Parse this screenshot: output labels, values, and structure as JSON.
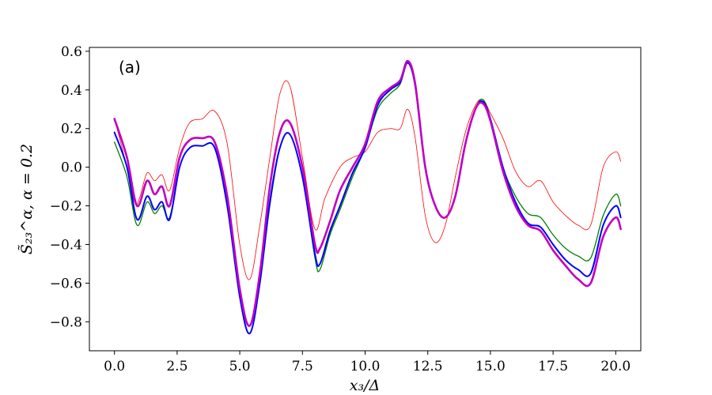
{
  "chart_data": {
    "type": "line",
    "panel_label": "(a)",
    "xlabel": "x₃/Δ",
    "ylabel": "S̃₂₃^α, α = 0.2",
    "xlim": [
      -1.0,
      21.0
    ],
    "ylim": [
      -0.95,
      0.62
    ],
    "x_ticks": [
      0.0,
      2.5,
      5.0,
      7.5,
      10.0,
      12.5,
      15.0,
      17.5,
      20.0
    ],
    "x_tick_labels": [
      "0.0",
      "2.5",
      "5.0",
      "7.5",
      "10.0",
      "12.5",
      "15.0",
      "17.5",
      "20.0"
    ],
    "y_ticks": [
      -0.8,
      -0.6,
      -0.4,
      -0.2,
      0.0,
      0.2,
      0.4,
      0.6
    ],
    "y_tick_labels": [
      "−0.8",
      "−0.6",
      "−0.4",
      "−0.2",
      "0.0",
      "0.2",
      "0.4",
      "0.6"
    ],
    "grid": false,
    "series": [
      {
        "color": "#ff0000",
        "width": 0.8,
        "x": [
          0.0,
          0.4,
          0.8,
          1.0,
          1.3,
          1.6,
          1.9,
          2.2,
          2.6,
          3.0,
          3.5,
          4.0,
          4.5,
          5.0,
          5.4,
          5.8,
          6.2,
          6.6,
          7.0,
          7.5,
          8.0,
          8.4,
          9.0,
          9.5,
          10.0,
          10.5,
          11.0,
          11.4,
          11.7,
          12.0,
          12.4,
          12.8,
          13.2,
          13.6,
          14.0,
          14.4,
          14.7,
          15.0,
          15.5,
          16.0,
          16.5,
          17.0,
          17.5,
          18.0,
          18.5,
          19.0,
          19.5,
          20.0,
          20.2
        ],
        "y": [
          0.25,
          0.05,
          -0.18,
          -0.16,
          -0.03,
          -0.07,
          -0.04,
          -0.12,
          0.1,
          0.23,
          0.25,
          0.29,
          0.12,
          -0.4,
          -0.58,
          -0.3,
          0.05,
          0.38,
          0.42,
          0.05,
          -0.32,
          -0.16,
          0.0,
          0.05,
          0.08,
          0.18,
          0.2,
          0.2,
          0.3,
          0.15,
          -0.25,
          -0.39,
          -0.3,
          -0.05,
          0.18,
          0.32,
          0.35,
          0.28,
          0.15,
          -0.02,
          -0.1,
          -0.07,
          -0.18,
          -0.25,
          -0.3,
          -0.3,
          0.0,
          0.08,
          0.03
        ]
      },
      {
        "color": "#008000",
        "width": 1.3,
        "x": [
          0.0,
          0.5,
          0.9,
          1.3,
          1.6,
          1.9,
          2.2,
          2.6,
          3.0,
          3.5,
          4.0,
          4.5,
          5.0,
          5.4,
          5.8,
          6.2,
          6.6,
          7.0,
          7.5,
          8.0,
          8.2,
          8.6,
          9.0,
          9.5,
          10.0,
          10.5,
          11.0,
          11.4,
          11.7,
          12.0,
          12.4,
          12.8,
          13.2,
          13.6,
          14.0,
          14.4,
          14.7,
          15.0,
          15.5,
          16.0,
          16.5,
          17.0,
          17.5,
          18.0,
          18.5,
          19.0,
          19.5,
          20.0,
          20.2
        ],
        "y": [
          0.13,
          -0.05,
          -0.3,
          -0.18,
          -0.24,
          -0.2,
          -0.26,
          0.0,
          0.1,
          0.11,
          0.1,
          -0.18,
          -0.67,
          -0.86,
          -0.6,
          -0.2,
          0.1,
          0.17,
          -0.05,
          -0.47,
          -0.53,
          -0.35,
          -0.22,
          -0.05,
          0.1,
          0.3,
          0.38,
          0.43,
          0.55,
          0.42,
          0.0,
          -0.2,
          -0.26,
          -0.15,
          0.12,
          0.3,
          0.35,
          0.25,
          0.0,
          -0.15,
          -0.24,
          -0.26,
          -0.35,
          -0.42,
          -0.46,
          -0.47,
          -0.25,
          -0.14,
          -0.2
        ]
      },
      {
        "color": "#0000ff",
        "width": 2.0,
        "x": [
          0.0,
          0.5,
          0.9,
          1.3,
          1.6,
          1.9,
          2.2,
          2.6,
          3.0,
          3.5,
          4.0,
          4.5,
          5.0,
          5.4,
          5.8,
          6.2,
          6.6,
          7.0,
          7.5,
          8.0,
          8.2,
          8.6,
          9.0,
          9.5,
          10.0,
          10.5,
          11.0,
          11.4,
          11.7,
          12.0,
          12.4,
          12.8,
          13.2,
          13.6,
          14.0,
          14.4,
          14.7,
          15.0,
          15.5,
          16.0,
          16.5,
          17.0,
          17.5,
          18.0,
          18.5,
          19.0,
          19.5,
          20.0,
          20.2
        ],
        "y": [
          0.18,
          0.0,
          -0.27,
          -0.15,
          -0.22,
          -0.18,
          -0.27,
          0.0,
          0.1,
          0.11,
          0.1,
          -0.2,
          -0.67,
          -0.86,
          -0.6,
          -0.18,
          0.1,
          0.17,
          -0.05,
          -0.45,
          -0.5,
          -0.33,
          -0.2,
          -0.03,
          0.1,
          0.32,
          0.4,
          0.44,
          0.54,
          0.42,
          0.0,
          -0.2,
          -0.26,
          -0.15,
          0.12,
          0.3,
          0.34,
          0.25,
          0.0,
          -0.18,
          -0.29,
          -0.31,
          -0.4,
          -0.48,
          -0.53,
          -0.55,
          -0.3,
          -0.2,
          -0.26
        ]
      },
      {
        "color": "#c000c0",
        "width": 2.6,
        "x": [
          0.0,
          0.5,
          0.9,
          1.3,
          1.6,
          1.9,
          2.2,
          2.6,
          3.0,
          3.5,
          4.0,
          4.5,
          5.0,
          5.4,
          5.8,
          6.2,
          6.6,
          7.0,
          7.5,
          8.0,
          8.2,
          8.6,
          9.0,
          9.5,
          10.0,
          10.5,
          11.0,
          11.4,
          11.7,
          12.0,
          12.4,
          12.8,
          13.2,
          13.6,
          14.0,
          14.4,
          14.7,
          15.0,
          15.5,
          16.0,
          16.5,
          17.0,
          17.5,
          18.0,
          18.5,
          19.0,
          19.5,
          20.0,
          20.2
        ],
        "y": [
          0.25,
          0.05,
          -0.2,
          -0.07,
          -0.14,
          -0.1,
          -0.2,
          0.05,
          0.14,
          0.15,
          0.13,
          -0.15,
          -0.63,
          -0.82,
          -0.55,
          -0.1,
          0.18,
          0.23,
          0.0,
          -0.4,
          -0.42,
          -0.28,
          -0.12,
          0.0,
          0.12,
          0.34,
          0.41,
          0.45,
          0.55,
          0.43,
          0.0,
          -0.2,
          -0.26,
          -0.15,
          0.12,
          0.3,
          0.33,
          0.24,
          -0.02,
          -0.2,
          -0.3,
          -0.33,
          -0.43,
          -0.51,
          -0.58,
          -0.6,
          -0.36,
          -0.26,
          -0.32
        ]
      }
    ]
  }
}
